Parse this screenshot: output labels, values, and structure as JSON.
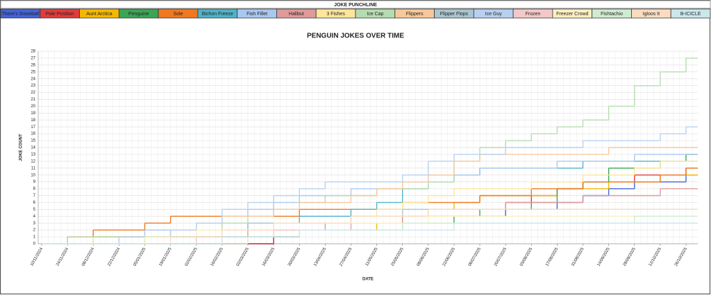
{
  "chart_data": {
    "type": "step-line",
    "title": "PENGUIN JOKES OVER TIME",
    "legend_title": "JOKE PUNCHLINE",
    "x_label": "DATE",
    "y_label": "JOKE COUNT",
    "grid": true,
    "x": [
      "10/11/2024",
      "24/11/2024",
      "08/12/2024",
      "22/12/2024",
      "05/01/2025",
      "19/01/2025",
      "02/02/2025",
      "16/02/2025",
      "02/03/2025",
      "16/03/2025",
      "30/03/2025",
      "13/04/2025",
      "27/04/2025",
      "11/05/2025",
      "25/05/2025",
      "08/06/2025",
      "22/06/2025",
      "06/07/2025",
      "20/07/2025",
      "03/08/2025",
      "17/08/2025",
      "31/08/2025",
      "14/09/2025",
      "28/09/2025",
      "12/10/2025",
      "26/10/2025"
    ],
    "ylim": [
      0,
      28
    ],
    "yticks": [
      0,
      1,
      2,
      3,
      4,
      5,
      6,
      7,
      8,
      9,
      10,
      11,
      12,
      13,
      14,
      15,
      16,
      17,
      18,
      19,
      20,
      21,
      22,
      23,
      24,
      25,
      26,
      27,
      28
    ],
    "series": [
      {
        "name": "There's Snowball",
        "color": "#4363d8",
        "values": [
          0,
          0,
          0,
          0,
          0,
          0,
          0,
          0,
          0,
          1,
          2,
          2,
          3,
          3,
          4,
          4,
          4,
          4,
          5,
          5,
          6,
          7,
          8,
          9,
          9,
          10
        ]
      },
      {
        "name": "Pole Position",
        "color": "#e03c3c",
        "values": [
          0,
          0,
          0,
          0,
          0,
          0,
          0,
          0,
          0,
          1,
          2,
          2,
          3,
          3,
          4,
          5,
          5,
          5,
          6,
          7,
          8,
          9,
          9,
          10,
          10,
          11
        ]
      },
      {
        "name": "Aunt Arctica",
        "color": "#f5b800",
        "values": [
          0,
          0,
          1,
          1,
          1,
          2,
          2,
          2,
          2,
          2,
          2,
          2,
          2,
          3,
          4,
          5,
          6,
          7,
          7,
          7,
          8,
          8,
          9,
          9,
          10,
          10
        ]
      },
      {
        "name": "Penguine",
        "color": "#3aa655",
        "values": [
          0,
          0,
          1,
          1,
          1,
          1,
          1,
          1,
          1,
          1,
          2,
          2,
          2,
          2,
          3,
          3,
          4,
          5,
          5,
          6,
          8,
          9,
          11,
          11,
          12,
          13
        ]
      },
      {
        "name": "Sole",
        "color": "#f07820",
        "values": [
          0,
          1,
          2,
          2,
          3,
          4,
          4,
          4,
          4,
          4,
          5,
          5,
          5,
          5,
          6,
          6,
          6,
          7,
          7,
          8,
          8,
          9,
          9,
          9,
          10,
          11
        ]
      },
      {
        "name": "Bichon Freeze",
        "color": "#4fb3c8",
        "values": [
          0,
          0,
          0,
          0,
          1,
          1,
          2,
          2,
          3,
          3,
          4,
          4,
          5,
          6,
          8,
          9,
          10,
          11,
          11,
          11,
          11,
          12,
          12,
          12,
          12,
          12
        ]
      },
      {
        "name": "Fish Fillet",
        "color": "#a9c8f0",
        "values": [
          0,
          0,
          0,
          1,
          2,
          2,
          3,
          4,
          5,
          6,
          7,
          7,
          8,
          8,
          9,
          10,
          10,
          11,
          11,
          11,
          12,
          12,
          12,
          13,
          13,
          13
        ]
      },
      {
        "name": "Halibut",
        "color": "#e09a9a",
        "values": [
          0,
          0,
          0,
          0,
          0,
          0,
          1,
          1,
          2,
          2,
          2,
          3,
          3,
          3,
          4,
          5,
          5,
          5,
          6,
          6,
          6,
          7,
          7,
          7,
          8,
          8
        ]
      },
      {
        "name": "3 Fishes",
        "color": "#fde59a",
        "values": [
          0,
          0,
          1,
          1,
          1,
          2,
          2,
          3,
          3,
          3,
          3,
          3,
          4,
          5,
          6,
          7,
          8,
          8,
          8,
          9,
          9,
          10,
          10,
          11,
          12,
          12
        ]
      },
      {
        "name": "Ice Cap",
        "color": "#b5dcb0",
        "values": [
          0,
          1,
          1,
          1,
          1,
          1,
          2,
          3,
          4,
          5,
          6,
          7,
          7,
          8,
          8,
          9,
          12,
          14,
          15,
          16,
          17,
          18,
          20,
          23,
          25,
          27
        ]
      },
      {
        "name": "Flippers",
        "color": "#f7c89a",
        "values": [
          0,
          0,
          0,
          0,
          1,
          2,
          3,
          4,
          4,
          5,
          6,
          6,
          7,
          8,
          9,
          10,
          12,
          13,
          13,
          13,
          13,
          13,
          14,
          14,
          14,
          14
        ]
      },
      {
        "name": "Flipper Flops",
        "color": "#a9c7d0",
        "values": [
          0,
          0,
          0,
          0,
          0,
          0,
          1,
          2,
          3,
          3,
          3,
          3,
          4,
          4,
          5,
          5,
          5,
          5,
          5,
          5,
          5,
          5,
          5,
          5,
          5,
          5
        ]
      },
      {
        "name": "Ice Guy",
        "color": "#b8d0f0",
        "values": [
          0,
          0,
          0,
          1,
          1,
          2,
          3,
          5,
          6,
          7,
          8,
          9,
          9,
          9,
          10,
          12,
          13,
          13,
          14,
          14,
          14,
          15,
          15,
          15,
          16,
          17
        ]
      },
      {
        "name": "Frozen",
        "color": "#f4c8c8",
        "values": [
          0,
          0,
          0,
          0,
          0,
          0,
          1,
          1,
          1,
          2,
          2,
          2,
          3,
          3,
          3,
          3,
          3,
          3,
          3,
          3,
          3,
          3,
          3,
          3,
          3,
          3
        ]
      },
      {
        "name": "Freezer Crowd",
        "color": "#fdf0c0",
        "values": [
          0,
          0,
          0,
          0,
          1,
          1,
          2,
          2,
          2,
          3,
          3,
          3,
          3,
          3,
          3,
          4,
          4,
          4,
          4,
          4,
          4,
          4,
          4,
          4,
          4,
          4
        ]
      },
      {
        "name": "Fishtachio",
        "color": "#d0ecd0",
        "values": [
          0,
          0,
          0,
          0,
          0,
          0,
          0,
          0,
          1,
          1,
          2,
          2,
          2,
          2,
          3,
          3,
          3,
          3,
          3,
          3,
          3,
          3,
          3,
          4,
          4,
          4
        ]
      },
      {
        "name": "Igloos It",
        "color": "#fbdcc0",
        "values": [
          0,
          0,
          0,
          0,
          0,
          1,
          1,
          2,
          2,
          3,
          3,
          3,
          4,
          4,
          4,
          5,
          5,
          5,
          5,
          5,
          5,
          5,
          5,
          5,
          5,
          5
        ]
      },
      {
        "name": "B-ICICLE",
        "color": "#c8e8ec",
        "values": [
          0,
          0,
          0,
          0,
          0,
          0,
          0,
          1,
          1,
          1,
          2,
          2,
          2,
          2,
          2,
          2,
          3,
          3,
          3,
          3,
          3,
          3,
          3,
          3,
          3,
          3
        ]
      }
    ]
  }
}
